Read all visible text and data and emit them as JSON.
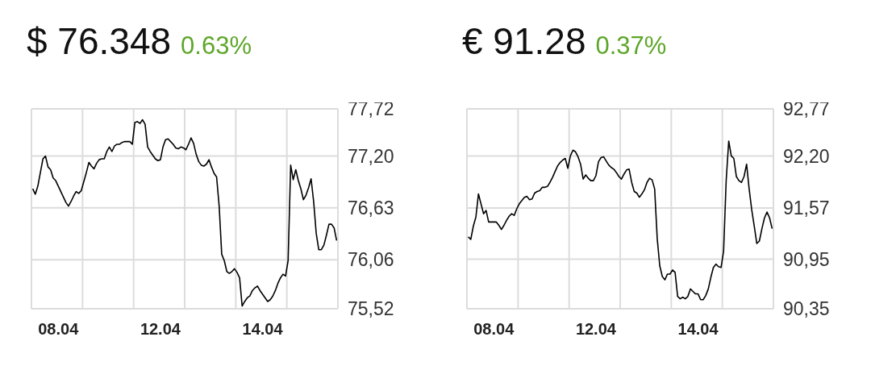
{
  "chart_data": [
    {
      "type": "line",
      "title": "$ 76.348",
      "subtitle": "0.63%",
      "color": "#000000",
      "grid": true,
      "ylim": [
        75.52,
        77.72
      ],
      "yticks": [
        {
          "value": 75.52,
          "label": "75,52"
        },
        {
          "value": 76.06,
          "label": "76,06"
        },
        {
          "value": 76.63,
          "label": "76,63"
        },
        {
          "value": 77.2,
          "label": "77,20"
        },
        {
          "value": 77.72,
          "label": "77,72"
        }
      ],
      "categories": [
        null,
        null,
        null,
        null,
        null,
        null,
        null,
        null,
        null,
        null,
        "08.04",
        null,
        null,
        null,
        null,
        null,
        null,
        null,
        null,
        null,
        null,
        null,
        null,
        null,
        null,
        null,
        null,
        null,
        null,
        null,
        null,
        null,
        null,
        null,
        null,
        null,
        null,
        null,
        null,
        null,
        null,
        null,
        null,
        null,
        null,
        null,
        null,
        null,
        null,
        null,
        "12.04",
        null,
        null,
        null,
        null,
        null,
        null,
        null,
        null,
        null,
        null,
        null,
        null,
        null,
        null,
        null,
        null,
        null,
        null,
        null,
        null,
        null,
        null,
        null,
        null,
        null,
        null,
        null,
        null,
        null,
        null,
        null,
        null,
        null,
        null,
        null,
        null,
        null,
        null,
        null,
        "14.04",
        null,
        null,
        null,
        null,
        null,
        null,
        null,
        null,
        null,
        null,
        null,
        null,
        null,
        null,
        null,
        null,
        null,
        null,
        null,
        null,
        null,
        null,
        null,
        null,
        null,
        null,
        null,
        null,
        null
      ],
      "values": [
        76.84,
        76.78,
        76.87,
        77.02,
        77.17,
        77.2,
        77.08,
        77.05,
        76.96,
        76.93,
        76.87,
        76.81,
        76.75,
        76.69,
        76.65,
        76.7,
        76.76,
        76.81,
        76.79,
        76.82,
        76.92,
        77.02,
        77.13,
        77.09,
        77.06,
        77.12,
        77.16,
        77.17,
        77.17,
        77.25,
        77.3,
        77.25,
        77.31,
        77.33,
        77.33,
        77.35,
        77.36,
        77.36,
        77.36,
        77.33,
        77.57,
        77.58,
        77.56,
        77.6,
        77.55,
        77.3,
        77.25,
        77.21,
        77.17,
        77.15,
        77.16,
        77.3,
        77.38,
        77.39,
        77.36,
        77.33,
        77.29,
        77.28,
        77.3,
        77.29,
        77.27,
        77.33,
        77.4,
        77.34,
        77.22,
        77.14,
        77.1,
        77.09,
        77.11,
        77.16,
        77.08,
        77.01,
        76.97,
        76.65,
        76.12,
        76.05,
        75.93,
        75.91,
        75.93,
        75.96,
        75.92,
        75.86,
        75.55,
        75.6,
        75.64,
        75.66,
        75.72,
        75.75,
        75.77,
        75.72,
        75.68,
        75.64,
        75.6,
        75.62,
        75.66,
        75.72,
        75.8,
        75.86,
        75.9,
        75.88,
        76.05,
        77.1,
        76.94,
        77.05,
        76.93,
        76.84,
        76.72,
        76.77,
        76.85,
        76.95,
        76.7,
        76.35,
        76.17,
        76.17,
        76.22,
        76.33,
        76.45,
        76.45,
        76.41,
        76.27
      ]
    },
    {
      "type": "line",
      "title": "€ 91.28",
      "subtitle": "0.37%",
      "color": "#000000",
      "grid": true,
      "ylim": [
        90.35,
        92.77
      ],
      "yticks": [
        {
          "value": 90.35,
          "label": "90,35"
        },
        {
          "value": 90.95,
          "label": "90,95"
        },
        {
          "value": 91.57,
          "label": "91,57"
        },
        {
          "value": 92.2,
          "label": "92,20"
        },
        {
          "value": 92.77,
          "label": "92,77"
        }
      ],
      "categories": [
        null,
        null,
        null,
        null,
        null,
        null,
        null,
        null,
        null,
        null,
        "08.04",
        null,
        null,
        null,
        null,
        null,
        null,
        null,
        null,
        null,
        null,
        null,
        null,
        null,
        null,
        null,
        null,
        null,
        null,
        null,
        null,
        null,
        null,
        null,
        null,
        null,
        null,
        null,
        null,
        null,
        null,
        null,
        null,
        null,
        null,
        null,
        null,
        null,
        null,
        null,
        "12.04",
        null,
        null,
        null,
        null,
        null,
        null,
        null,
        null,
        null,
        null,
        null,
        null,
        null,
        null,
        null,
        null,
        null,
        null,
        null,
        null,
        null,
        null,
        null,
        null,
        null,
        null,
        null,
        null,
        null,
        null,
        null,
        null,
        null,
        null,
        null,
        null,
        null,
        null,
        null,
        "14.04",
        null,
        null,
        null,
        null,
        null,
        null,
        null,
        null,
        null,
        null,
        null,
        null,
        null,
        null,
        null,
        null,
        null,
        null,
        null,
        null,
        null,
        null,
        null,
        null,
        null,
        null,
        null,
        null,
        null
      ],
      "values": [
        91.22,
        91.19,
        91.35,
        91.46,
        91.74,
        91.62,
        91.5,
        91.54,
        91.4,
        91.4,
        91.4,
        91.4,
        91.36,
        91.31,
        91.36,
        91.42,
        91.47,
        91.5,
        91.48,
        91.56,
        91.62,
        91.66,
        91.7,
        91.71,
        91.67,
        91.68,
        91.75,
        91.77,
        91.78,
        91.82,
        91.82,
        91.83,
        91.88,
        91.94,
        92.01,
        92.08,
        92.12,
        92.15,
        92.17,
        92.05,
        92.2,
        92.27,
        92.25,
        92.19,
        92.1,
        91.92,
        91.97,
        91.93,
        91.9,
        91.9,
        91.96,
        92.13,
        92.18,
        92.19,
        92.14,
        92.09,
        92.06,
        92.04,
        92.0,
        91.95,
        91.92,
        91.98,
        92.03,
        92.04,
        91.88,
        91.77,
        91.75,
        91.7,
        91.74,
        91.79,
        91.88,
        91.93,
        91.91,
        91.8,
        91.2,
        90.87,
        90.74,
        90.7,
        90.77,
        90.77,
        90.82,
        90.79,
        90.5,
        90.47,
        90.49,
        90.47,
        90.5,
        90.59,
        90.56,
        90.53,
        90.53,
        90.46,
        90.46,
        90.51,
        90.59,
        90.73,
        90.85,
        90.89,
        90.86,
        90.85,
        91.05,
        91.9,
        92.38,
        92.2,
        92.17,
        91.95,
        91.9,
        91.88,
        91.95,
        92.1,
        91.8,
        91.55,
        91.35,
        91.14,
        91.17,
        91.32,
        91.45,
        91.52,
        91.45,
        91.32
      ]
    }
  ]
}
